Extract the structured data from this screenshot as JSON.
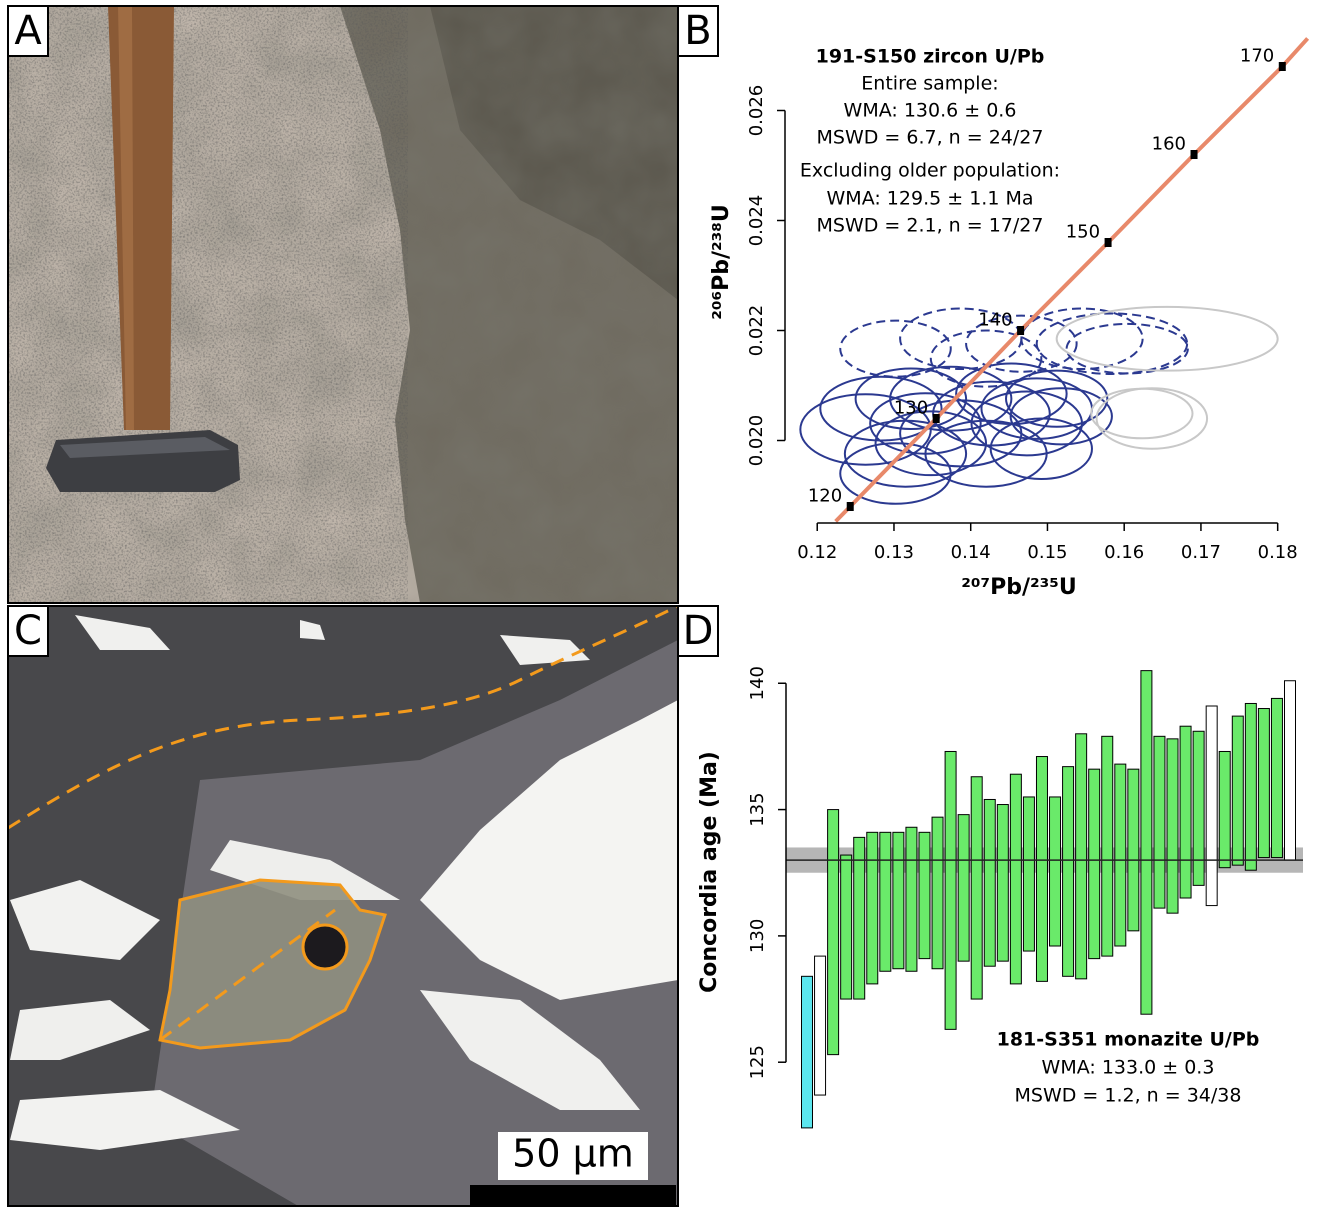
{
  "panel_labels": [
    "A",
    "B",
    "C",
    "D"
  ],
  "scale_bar_label": "50 µm",
  "chart_data": [
    {
      "type": "concordia",
      "title": "191-S150 zircon U/Pb",
      "annotations": [
        "Entire sample:",
        "WMA: 130.6 ± 0.6",
        "MSWD = 6.7, n = 24/27",
        "Excluding older population:",
        "WMA: 129.5 ± 1.1 Ma",
        "MSWD = 2.1, n = 17/27"
      ],
      "xlabel": "²⁰⁷Pb/²³⁵U",
      "ylabel": "²⁰⁶Pb/²³⁸U",
      "xlim": [
        0.1158,
        0.1833
      ],
      "ylim": [
        0.0185,
        0.0275
      ],
      "xticks": [
        0.12,
        0.13,
        0.14,
        0.15,
        0.16,
        0.17,
        0.18
      ],
      "yticks": [
        {
          "value": 0.02,
          "label": "0.020"
        },
        {
          "value": 0.022,
          "label": "0.022"
        },
        {
          "value": 0.024,
          "label": "0.024"
        },
        {
          "value": 0.026,
          "label": "0.026"
        }
      ],
      "concordia": {
        "color": "#e8896a",
        "x": [
          0.1224,
          0.1243,
          0.1355,
          0.1465,
          0.1579,
          0.1691,
          0.1806,
          0.1839
        ],
        "y": [
          0.01853,
          0.0188,
          0.0204,
          0.022,
          0.0236,
          0.0252,
          0.0268,
          0.02731
        ]
      },
      "age_markers": {
        "ages": [
          120,
          130,
          140,
          150,
          160,
          170
        ],
        "x": [
          0.1243,
          0.1355,
          0.1465,
          0.1579,
          0.1691,
          0.1806
        ],
        "y": [
          0.0188,
          0.0204,
          0.022,
          0.0236,
          0.0252,
          0.0268
        ]
      },
      "series": [
        {
          "color": "#2b3990",
          "dashed": false,
          "x": [
            0.1263,
            0.1283,
            0.1315,
            0.1302,
            0.1341,
            0.1374,
            0.1387,
            0.1427,
            0.142,
            0.1453,
            0.1473,
            0.1492,
            0.1518,
            0.1512,
            0.1322,
            0.1348,
            0.1486
          ],
          "y": [
            0.0202,
            0.02058,
            0.01976,
            0.0194,
            0.02031,
            0.02076,
            0.02013,
            0.02049,
            0.01976,
            0.02085,
            0.02031,
            0.01985,
            0.02044,
            0.02076,
            0.02076,
            0.01995,
            0.02058
          ],
          "rx": [
            0.0085,
            0.0079,
            0.0079,
            0.0072,
            0.0072,
            0.0079,
            0.0079,
            0.0076,
            0.0079,
            0.0072,
            0.0072,
            0.0066,
            0.0066,
            0.0066,
            0.0072,
            0.0072,
            0.0072
          ],
          "ry": [
            0.00064,
            0.00058,
            0.0006,
            0.00055,
            0.00055,
            0.00058,
            0.0006,
            0.00058,
            0.0006,
            0.00055,
            0.00058,
            0.00055,
            0.00051,
            0.00051,
            0.00055,
            0.00058,
            0.00055
          ]
        },
        {
          "color": "#2b3990",
          "dashed": true,
          "x": [
            0.1302,
            0.1387,
            0.142,
            0.1466,
            0.1545,
            0.1584,
            0.1604
          ],
          "y": [
            0.02167,
            0.02185,
            0.02149,
            0.02176,
            0.02185,
            0.02176,
            0.02167
          ],
          "rx": [
            0.0072,
            0.0079,
            0.0072,
            0.0072,
            0.0079,
            0.0098,
            0.0079
          ],
          "ry": [
            0.00051,
            0.00055,
            0.00051,
            0.00051,
            0.00055,
            0.00055,
            0.00045
          ]
        },
        {
          "color": "#c8c8c8",
          "dashed": false,
          "x": [
            0.1656,
            0.1636,
            0.1623
          ],
          "y": [
            0.02185,
            0.0204,
            0.02049
          ],
          "rx": [
            0.0144,
            0.0072,
            0.0066
          ],
          "ry": [
            0.00058,
            0.00055,
            0.00045
          ]
        }
      ]
    },
    {
      "type": "range-bar",
      "title": "181-S351 monazite U/Pb",
      "annotations": [
        "WMA: 133.0 ± 0.3",
        "MSWD = 1.2, n = 34/38"
      ],
      "ylabel": "Concordia age (Ma)",
      "ylim": [
        122,
        141
      ],
      "yticks": [
        125,
        130,
        135,
        140
      ],
      "low": [
        122.4,
        123.7,
        125.3,
        127.5,
        127.5,
        128.1,
        128.6,
        128.7,
        128.6,
        129.1,
        128.7,
        126.3,
        129.0,
        127.5,
        128.8,
        129.0,
        128.1,
        129.4,
        128.2,
        129.6,
        128.4,
        128.3,
        129.1,
        129.2,
        129.6,
        130.2,
        126.9,
        131.1,
        130.9,
        131.5,
        132.0,
        131.2,
        132.7,
        132.8,
        132.6,
        133.1,
        133.1,
        133.0
      ],
      "high": [
        128.4,
        129.2,
        135.0,
        133.2,
        133.9,
        134.1,
        134.1,
        134.1,
        134.3,
        134.1,
        134.7,
        137.3,
        134.8,
        136.3,
        135.4,
        135.2,
        136.4,
        135.5,
        137.1,
        135.5,
        136.7,
        138.0,
        136.6,
        137.9,
        136.8,
        136.6,
        140.5,
        137.9,
        137.8,
        138.3,
        138.1,
        139.1,
        137.3,
        138.7,
        139.2,
        139.0,
        139.4,
        140.1
      ],
      "colors": [
        "#5ce6ee",
        "#ffffff",
        "#6aea6a",
        "#6aea6a",
        "#6aea6a",
        "#6aea6a",
        "#6aea6a",
        "#6aea6a",
        "#6aea6a",
        "#6aea6a",
        "#6aea6a",
        "#6aea6a",
        "#6aea6a",
        "#6aea6a",
        "#6aea6a",
        "#6aea6a",
        "#6aea6a",
        "#6aea6a",
        "#6aea6a",
        "#6aea6a",
        "#6aea6a",
        "#6aea6a",
        "#6aea6a",
        "#6aea6a",
        "#6aea6a",
        "#6aea6a",
        "#6aea6a",
        "#6aea6a",
        "#6aea6a",
        "#6aea6a",
        "#6aea6a",
        "#ffffff",
        "#6aea6a",
        "#6aea6a",
        "#6aea6a",
        "#6aea6a",
        "#6aea6a",
        "#ffffff"
      ],
      "mean": 133.0,
      "band": [
        132.5,
        133.5
      ]
    }
  ]
}
